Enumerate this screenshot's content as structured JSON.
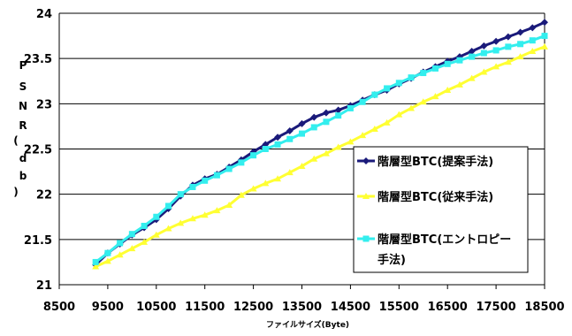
{
  "chart_data": {
    "type": "line",
    "title": "",
    "xlabel": "ファイルサイズ(Byte)",
    "ylabel": "PSNR(db)",
    "xlim": [
      8500,
      18500
    ],
    "ylim": [
      21,
      24
    ],
    "xticks": [
      "8500",
      "9500",
      "10500",
      "11500",
      "12500",
      "13500",
      "14500",
      "15500",
      "16500",
      "17500",
      "18500"
    ],
    "yticks": [
      "21",
      "21.5",
      "22",
      "22.5",
      "23",
      "23.5",
      "24"
    ],
    "grid": "horizontal",
    "legend_position": "right",
    "series": [
      {
        "name": "階層型BTC(提案手法)",
        "color": "#1a1a7a",
        "marker": "diamond",
        "points": [
          [
            9250,
            21.22
          ],
          [
            9500,
            21.35
          ],
          [
            9750,
            21.45
          ],
          [
            10000,
            21.55
          ],
          [
            10250,
            21.63
          ],
          [
            10500,
            21.72
          ],
          [
            10750,
            21.84
          ],
          [
            11000,
            21.98
          ],
          [
            11250,
            22.1
          ],
          [
            11500,
            22.17
          ],
          [
            11750,
            22.22
          ],
          [
            12000,
            22.3
          ],
          [
            12250,
            22.38
          ],
          [
            12500,
            22.47
          ],
          [
            12750,
            22.55
          ],
          [
            13000,
            22.63
          ],
          [
            13250,
            22.7
          ],
          [
            13500,
            22.78
          ],
          [
            13750,
            22.85
          ],
          [
            14000,
            22.9
          ],
          [
            14250,
            22.93
          ],
          [
            14500,
            22.98
          ],
          [
            14750,
            23.04
          ],
          [
            15000,
            23.1
          ],
          [
            15250,
            23.15
          ],
          [
            15500,
            23.22
          ],
          [
            15750,
            23.28
          ],
          [
            16000,
            23.35
          ],
          [
            16250,
            23.41
          ],
          [
            16500,
            23.47
          ],
          [
            16750,
            23.52
          ],
          [
            17000,
            23.58
          ],
          [
            17250,
            23.64
          ],
          [
            17500,
            23.69
          ],
          [
            17750,
            23.74
          ],
          [
            18000,
            23.79
          ],
          [
            18250,
            23.84
          ],
          [
            18500,
            23.9
          ]
        ]
      },
      {
        "name": "階層型BTC(従来手法)",
        "color": "#ffff33",
        "marker": "triangle",
        "points": [
          [
            9250,
            21.2
          ],
          [
            9500,
            21.26
          ],
          [
            9750,
            21.33
          ],
          [
            10000,
            21.4
          ],
          [
            10250,
            21.47
          ],
          [
            10500,
            21.55
          ],
          [
            10750,
            21.62
          ],
          [
            11000,
            21.68
          ],
          [
            11250,
            21.73
          ],
          [
            11500,
            21.77
          ],
          [
            11750,
            21.82
          ],
          [
            12000,
            21.88
          ],
          [
            12250,
            21.99
          ],
          [
            12500,
            22.06
          ],
          [
            12750,
            22.12
          ],
          [
            13000,
            22.17
          ],
          [
            13250,
            22.24
          ],
          [
            13500,
            22.31
          ],
          [
            13750,
            22.39
          ],
          [
            14000,
            22.45
          ],
          [
            14250,
            22.52
          ],
          [
            14500,
            22.58
          ],
          [
            14750,
            22.65
          ],
          [
            15000,
            22.72
          ],
          [
            15250,
            22.79
          ],
          [
            15500,
            22.88
          ],
          [
            15750,
            22.95
          ],
          [
            16000,
            23.02
          ],
          [
            16250,
            23.08
          ],
          [
            16500,
            23.15
          ],
          [
            16750,
            23.21
          ],
          [
            17000,
            23.28
          ],
          [
            17250,
            23.35
          ],
          [
            17500,
            23.41
          ],
          [
            17750,
            23.46
          ],
          [
            18000,
            23.52
          ],
          [
            18250,
            23.58
          ],
          [
            18500,
            23.63
          ]
        ]
      },
      {
        "name": "階層型BTC(エントロピー手法)",
        "color": "#33eeee",
        "marker": "square",
        "points": [
          [
            9250,
            21.25
          ],
          [
            9500,
            21.35
          ],
          [
            9750,
            21.46
          ],
          [
            10000,
            21.56
          ],
          [
            10250,
            21.65
          ],
          [
            10500,
            21.75
          ],
          [
            10750,
            21.87
          ],
          [
            11000,
            22.0
          ],
          [
            11250,
            22.08
          ],
          [
            11500,
            22.15
          ],
          [
            11750,
            22.21
          ],
          [
            12000,
            22.28
          ],
          [
            12250,
            22.35
          ],
          [
            12500,
            22.43
          ],
          [
            12750,
            22.5
          ],
          [
            13000,
            22.55
          ],
          [
            13250,
            22.61
          ],
          [
            13500,
            22.67
          ],
          [
            13750,
            22.74
          ],
          [
            14000,
            22.8
          ],
          [
            14250,
            22.87
          ],
          [
            14500,
            22.95
          ],
          [
            14750,
            23.02
          ],
          [
            15000,
            23.1
          ],
          [
            15250,
            23.17
          ],
          [
            15500,
            23.23
          ],
          [
            15750,
            23.29
          ],
          [
            16000,
            23.34
          ],
          [
            16250,
            23.39
          ],
          [
            16500,
            23.44
          ],
          [
            16750,
            23.48
          ],
          [
            17000,
            23.52
          ],
          [
            17250,
            23.56
          ],
          [
            17500,
            23.59
          ],
          [
            17750,
            23.63
          ],
          [
            18000,
            23.66
          ],
          [
            18250,
            23.7
          ],
          [
            18500,
            23.75
          ]
        ]
      }
    ],
    "legend": [
      {
        "line1": "階層型BTC(提案手法)",
        "line2": ""
      },
      {
        "line1": "階層型BTC(従来手法)",
        "line2": ""
      },
      {
        "line1": "階層型BTC(エントロピー",
        "line2": "手法)"
      }
    ],
    "ylabel_chars": [
      "P",
      "S",
      "N",
      "R",
      "(",
      "d",
      "b",
      ")"
    ]
  }
}
